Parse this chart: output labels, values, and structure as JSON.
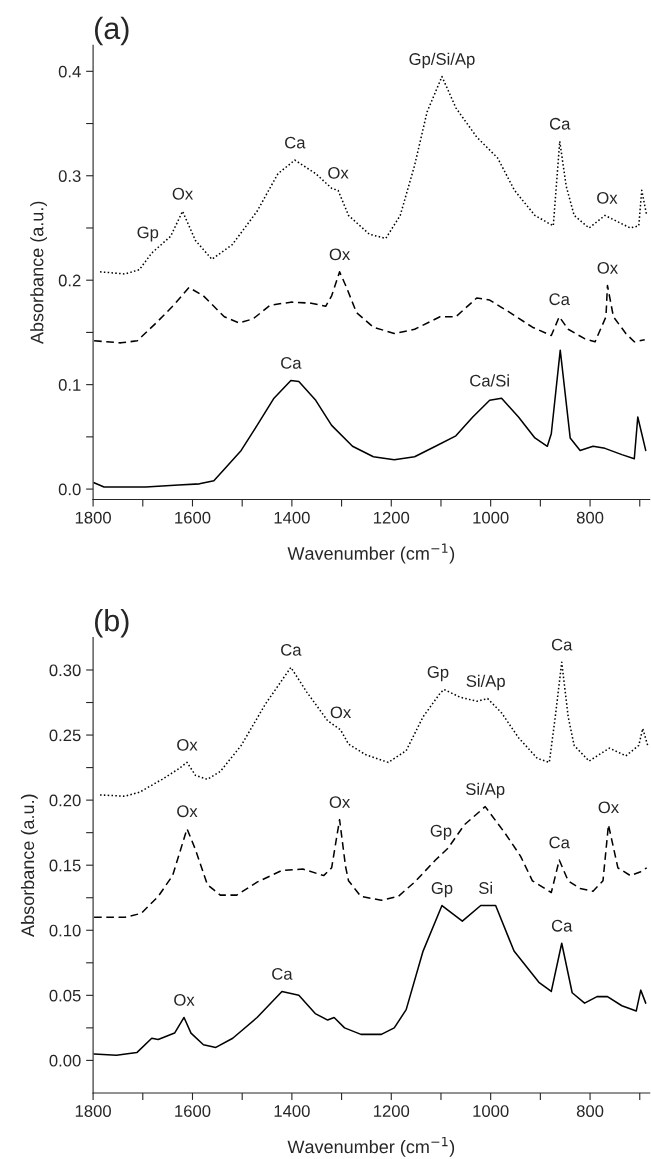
{
  "chart_data": [
    {
      "type": "line",
      "title": "(a)",
      "xlabel": "Wavenumber (cm$^{−1}$)",
      "ylabel": "Absorbance (a.u.)",
      "xlim": [
        1800,
        680
      ],
      "ylim": [
        -0.01,
        0.425
      ],
      "xticks": [
        1800,
        {
          "value": 1700,
          "label": null
        },
        1600,
        {
          "value": 1500,
          "label": null
        },
        1400,
        {
          "value": 1300,
          "label": null
        },
        1200,
        {
          "value": 1100,
          "label": null
        },
        1000,
        {
          "value": 900,
          "label": null
        },
        800,
        {
          "value": 700,
          "label": null
        }
      ],
      "yticks": [
        {
          "value": 0.0,
          "label": "0.0"
        },
        {
          "value": 0.05,
          "label": null
        },
        0.1,
        {
          "value": 0.15,
          "label": null
        },
        0.2,
        {
          "value": 0.25,
          "label": null
        },
        0.3,
        {
          "value": 0.35,
          "label": null
        },
        0.4
      ],
      "grid": false,
      "series": [
        {
          "color": "#000000",
          "line_style": "dotted",
          "x": [
            1786,
            1736,
            1707,
            1682,
            1644,
            1620,
            1594,
            1561,
            1520,
            1470,
            1428,
            1394,
            1352,
            1320,
            1307,
            1286,
            1244,
            1211,
            1182,
            1153,
            1128,
            1098,
            1070,
            1028,
            986,
            952,
            911,
            874,
            861,
            848,
            832,
            802,
            770,
            753,
            719,
            702,
            696,
            686
          ],
          "values": [
            0.208,
            0.206,
            0.21,
            0.226,
            0.242,
            0.266,
            0.238,
            0.22,
            0.234,
            0.266,
            0.302,
            0.315,
            0.302,
            0.288,
            0.286,
            0.262,
            0.244,
            0.24,
            0.262,
            0.31,
            0.361,
            0.395,
            0.365,
            0.337,
            0.317,
            0.286,
            0.262,
            0.252,
            0.333,
            0.29,
            0.262,
            0.25,
            0.262,
            0.258,
            0.25,
            0.252,
            0.286,
            0.262
          ]
        },
        {
          "color": "#000000",
          "line_style": "dashed",
          "x": [
            1798,
            1744,
            1711,
            1669,
            1636,
            1607,
            1578,
            1536,
            1506,
            1478,
            1444,
            1402,
            1361,
            1332,
            1320,
            1304,
            1290,
            1270,
            1236,
            1194,
            1153,
            1102,
            1070,
            1028,
            1002,
            961,
            916,
            878,
            862,
            844,
            811,
            790,
            768,
            765,
            753,
            728,
            711,
            690
          ],
          "values": [
            0.142,
            0.14,
            0.142,
            0.161,
            0.177,
            0.193,
            0.185,
            0.165,
            0.159,
            0.163,
            0.176,
            0.179,
            0.178,
            0.175,
            0.185,
            0.208,
            0.193,
            0.169,
            0.155,
            0.149,
            0.153,
            0.165,
            0.165,
            0.183,
            0.181,
            0.169,
            0.155,
            0.147,
            0.165,
            0.153,
            0.144,
            0.141,
            0.165,
            0.195,
            0.165,
            0.149,
            0.141,
            0.143
          ]
        },
        {
          "color": "#000000",
          "line_style": "solid",
          "x": [
            1798,
            1778,
            1694,
            1628,
            1586,
            1557,
            1536,
            1502,
            1470,
            1436,
            1402,
            1386,
            1352,
            1320,
            1278,
            1236,
            1194,
            1153,
            1111,
            1070,
            1036,
            1002,
            978,
            944,
            911,
            886,
            878,
            860,
            840,
            820,
            794,
            770,
            736,
            711,
            704,
            688
          ],
          "values": [
            0.006,
            0.002,
            0.002,
            0.004,
            0.005,
            0.008,
            0.019,
            0.037,
            0.061,
            0.087,
            0.104,
            0.103,
            0.085,
            0.061,
            0.041,
            0.031,
            0.028,
            0.031,
            0.041,
            0.051,
            0.069,
            0.085,
            0.087,
            0.069,
            0.049,
            0.041,
            0.053,
            0.133,
            0.049,
            0.037,
            0.041,
            0.039,
            0.033,
            0.029,
            0.069,
            0.037
          ]
        }
      ],
      "annotations": [
        {
          "text": "Gp",
          "x": 1690,
          "y": 0.229
        },
        {
          "text": "Ox",
          "x": 1620,
          "y": 0.266
        },
        {
          "text": "Ca",
          "x": 1394,
          "y": 0.315
        },
        {
          "text": "Ox",
          "x": 1307,
          "y": 0.286
        },
        {
          "text": "Gp/Si/Ap",
          "x": 1098,
          "y": 0.395
        },
        {
          "text": "Ca",
          "x": 861,
          "y": 0.333
        },
        {
          "text": "Ox",
          "x": 766,
          "y": 0.262
        },
        {
          "text": "Ox",
          "x": 1304,
          "y": 0.208
        },
        {
          "text": "Ca",
          "x": 862,
          "y": 0.165
        },
        {
          "text": "Ox",
          "x": 765,
          "y": 0.195
        },
        {
          "text": "Ca",
          "x": 1402,
          "y": 0.104
        },
        {
          "text": "Ca/Si",
          "x": 1002,
          "y": 0.087
        }
      ]
    },
    {
      "type": "line",
      "title": "(b)",
      "xlabel": "Wavenumber (cm$^{−1}$)",
      "ylabel": "Absorbance (a.u.)",
      "xlim": [
        1800,
        680
      ],
      "ylim": [
        -0.025,
        0.325
      ],
      "xticks": [
        1800,
        {
          "value": 1700,
          "label": null
        },
        1600,
        {
          "value": 1500,
          "label": null
        },
        1400,
        {
          "value": 1300,
          "label": null
        },
        1200,
        {
          "value": 1100,
          "label": null
        },
        1000,
        {
          "value": 900,
          "label": null
        },
        800,
        {
          "value": 700,
          "label": null
        }
      ],
      "yticks": [
        {
          "value": 0.0,
          "label": "0.00"
        },
        {
          "value": 0.025,
          "label": null
        },
        {
          "value": 0.05,
          "label": "0.05"
        },
        {
          "value": 0.075,
          "label": null
        },
        {
          "value": 0.1,
          "label": "0.10"
        },
        {
          "value": 0.125,
          "label": null
        },
        {
          "value": 0.15,
          "label": "0.15"
        },
        {
          "value": 0.175,
          "label": null
        },
        {
          "value": 0.2,
          "label": "0.20"
        },
        {
          "value": 0.225,
          "label": null
        },
        {
          "value": 0.25,
          "label": "0.25"
        },
        {
          "value": 0.275,
          "label": null
        },
        {
          "value": 0.3,
          "label": "0.30"
        }
      ],
      "grid": false,
      "series": [
        {
          "color": "#000000",
          "line_style": "dotted",
          "x": [
            1786,
            1736,
            1707,
            1661,
            1628,
            1611,
            1594,
            1570,
            1544,
            1502,
            1453,
            1402,
            1370,
            1328,
            1302,
            1286,
            1252,
            1206,
            1170,
            1136,
            1102,
            1094,
            1061,
            1028,
            1006,
            978,
            944,
            906,
            882,
            870,
            857,
            844,
            832,
            802,
            761,
            728,
            702,
            694,
            684
          ],
          "values": [
            0.204,
            0.203,
            0.206,
            0.216,
            0.224,
            0.229,
            0.219,
            0.216,
            0.222,
            0.242,
            0.274,
            0.302,
            0.283,
            0.261,
            0.254,
            0.243,
            0.235,
            0.229,
            0.238,
            0.264,
            0.282,
            0.285,
            0.279,
            0.276,
            0.278,
            0.267,
            0.248,
            0.232,
            0.229,
            0.264,
            0.306,
            0.264,
            0.242,
            0.23,
            0.24,
            0.234,
            0.242,
            0.255,
            0.242
          ]
        },
        {
          "color": "#000000",
          "line_style": "dashed",
          "x": [
            1798,
            1736,
            1703,
            1669,
            1640,
            1611,
            1594,
            1570,
            1544,
            1511,
            1470,
            1420,
            1378,
            1336,
            1320,
            1304,
            1292,
            1286,
            1261,
            1220,
            1186,
            1153,
            1111,
            1086,
            1053,
            1011,
            970,
            940,
            916,
            878,
            862,
            844,
            820,
            794,
            774,
            763,
            744,
            719,
            698,
            686
          ],
          "values": [
            0.11,
            0.11,
            0.113,
            0.126,
            0.142,
            0.178,
            0.162,
            0.135,
            0.127,
            0.127,
            0.137,
            0.146,
            0.147,
            0.142,
            0.148,
            0.185,
            0.149,
            0.138,
            0.126,
            0.123,
            0.126,
            0.137,
            0.154,
            0.163,
            0.181,
            0.195,
            0.174,
            0.157,
            0.138,
            0.129,
            0.154,
            0.138,
            0.132,
            0.13,
            0.138,
            0.181,
            0.148,
            0.142,
            0.145,
            0.148
          ]
        },
        {
          "color": "#000000",
          "line_style": "solid",
          "x": [
            1798,
            1753,
            1712,
            1682,
            1669,
            1636,
            1617,
            1603,
            1578,
            1553,
            1519,
            1470,
            1420,
            1386,
            1353,
            1328,
            1315,
            1294,
            1261,
            1220,
            1194,
            1170,
            1136,
            1098,
            1057,
            1020,
            990,
            953,
            903,
            878,
            857,
            836,
            811,
            786,
            765,
            736,
            707,
            698,
            688
          ],
          "values": [
            0.005,
            0.004,
            0.006,
            0.017,
            0.016,
            0.021,
            0.033,
            0.021,
            0.012,
            0.01,
            0.017,
            0.033,
            0.053,
            0.05,
            0.036,
            0.031,
            0.033,
            0.025,
            0.02,
            0.02,
            0.025,
            0.039,
            0.084,
            0.119,
            0.107,
            0.119,
            0.119,
            0.084,
            0.06,
            0.053,
            0.09,
            0.052,
            0.044,
            0.049,
            0.049,
            0.042,
            0.038,
            0.054,
            0.044
          ]
        }
      ],
      "annotations": [
        {
          "text": "Ox",
          "x": 1611,
          "y": 0.229
        },
        {
          "text": "Ca",
          "x": 1402,
          "y": 0.302
        },
        {
          "text": "Ox",
          "x": 1302,
          "y": 0.254
        },
        {
          "text": "Gp",
          "x": 1106,
          "y": 0.285
        },
        {
          "text": "Si/Ap",
          "x": 1010,
          "y": 0.278
        },
        {
          "text": "Ca",
          "x": 857,
          "y": 0.306
        },
        {
          "text": "Ox",
          "x": 1611,
          "y": 0.178
        },
        {
          "text": "Ox",
          "x": 1304,
          "y": 0.185
        },
        {
          "text": "Gp",
          "x": 1100,
          "y": 0.163
        },
        {
          "text": "Si/Ap",
          "x": 1011,
          "y": 0.195
        },
        {
          "text": "Ca",
          "x": 862,
          "y": 0.154
        },
        {
          "text": "Ox",
          "x": 763,
          "y": 0.181
        },
        {
          "text": "Ox",
          "x": 1617,
          "y": 0.033
        },
        {
          "text": "Ca",
          "x": 1420,
          "y": 0.053
        },
        {
          "text": "Gp",
          "x": 1098,
          "y": 0.119
        },
        {
          "text": "Si",
          "x": 1010,
          "y": 0.119
        },
        {
          "text": "Ca",
          "x": 857,
          "y": 0.09
        }
      ]
    }
  ]
}
